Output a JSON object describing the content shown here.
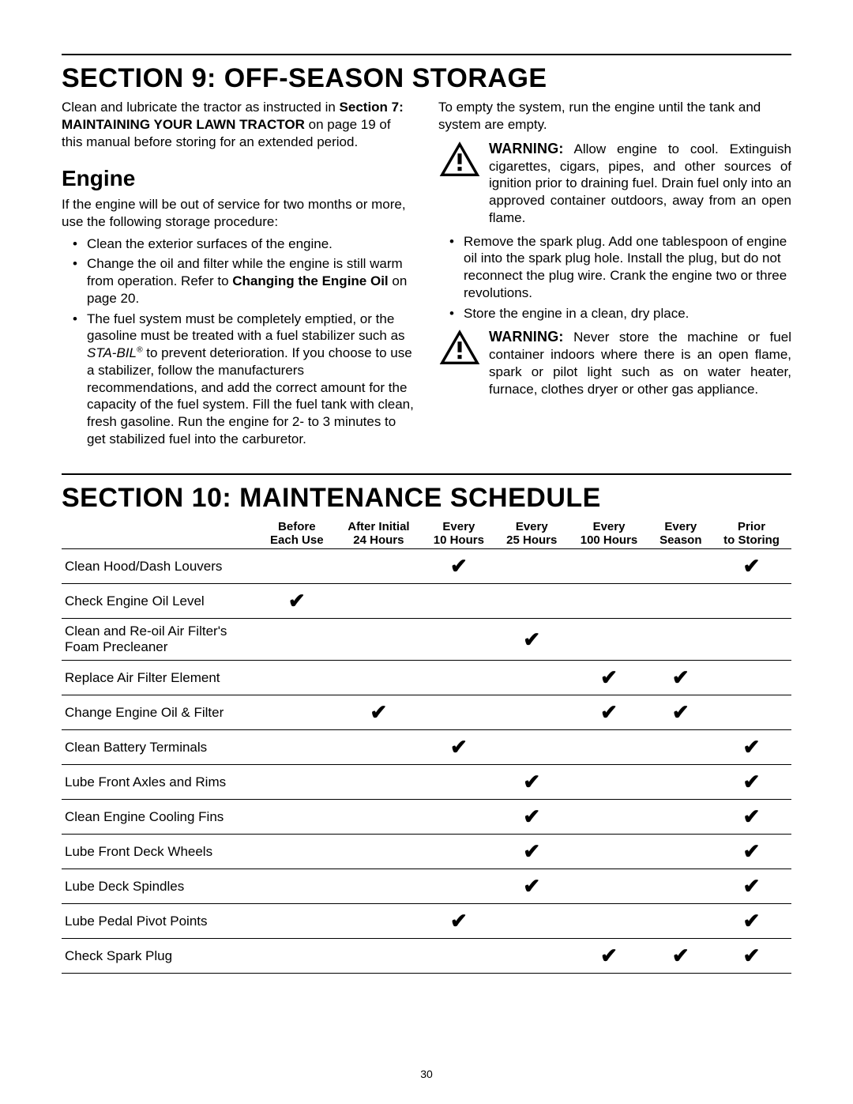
{
  "section9": {
    "title": "SECTION 9:  OFF-SEASON STORAGE",
    "left": {
      "intro_a": "Clean and lubricate the tractor as instructed in ",
      "intro_b": "Section 7: MAINTAINING YOUR LAWN TRACTOR",
      "intro_c": " on page 19 of this manual before storing for an extended period.",
      "engine_h": "Engine",
      "engine_p": "If the engine will be out of service for two months or more, use the following storage procedure:",
      "b1": "Clean the exterior surfaces of the engine.",
      "b2a": "Change the oil and filter while the engine is still warm from operation. Refer to ",
      "b2b": "Changing the Engine Oil",
      "b2c": " on page 20.",
      "b3a": "The fuel system must be completely emptied, or the gasoline must be treated with a fuel stabilizer such as ",
      "b3b": "STA-BIL",
      "b3c": " to prevent deterioration. If you choose to use a stabilizer, follow the manufacturers recommendations, and add the correct amount for the capacity of the fuel system. Fill the fuel tank with clean, fresh gasoline. Run the engine for 2- to 3 minutes to get stabilized fuel into the carburetor."
    },
    "right": {
      "top": "To empty the system, run the engine until the tank and system are empty.",
      "warn1_label": "WARNING:",
      "warn1_text": " Allow engine to cool. Extinguish cigarettes, cigars, pipes, and other sources of ignition prior to draining fuel. Drain fuel only into an approved container outdoors, away from an open flame.",
      "b1": "Remove the spark plug. Add one tablespoon of engine oil into the spark plug hole. Install the plug, but do not reconnect the plug wire. Crank the engine two or three revolutions.",
      "b2": "Store the engine in a clean, dry place.",
      "warn2_label": "WARNING:",
      "warn2_text": " Never store the machine or fuel container indoors where there is an open flame, spark or pilot light such as on water heater, furnace, clothes dryer or other gas appliance."
    }
  },
  "section10": {
    "title": "SECTION 10:  MAINTENANCE SCHEDULE",
    "columns": [
      "",
      "Before\nEach Use",
      "After Initial\n24 Hours",
      "Every\n10 Hours",
      "Every\n25 Hours",
      "Every\n100 Hours",
      "Every\nSeason",
      "Prior\nto Storing"
    ],
    "check_glyph": "✔",
    "rows": [
      {
        "label": "Clean Hood/Dash Louvers",
        "marks": [
          0,
          0,
          1,
          0,
          0,
          0,
          1
        ]
      },
      {
        "label": "Check Engine Oil Level",
        "marks": [
          1,
          0,
          0,
          0,
          0,
          0,
          0
        ]
      },
      {
        "label": "Clean and Re-oil Air Filter's Foam Precleaner",
        "marks": [
          0,
          0,
          0,
          1,
          0,
          0,
          0
        ]
      },
      {
        "label": "Replace Air Filter Element",
        "marks": [
          0,
          0,
          0,
          0,
          1,
          1,
          0
        ]
      },
      {
        "label": "Change Engine Oil & Filter",
        "marks": [
          0,
          1,
          0,
          0,
          1,
          1,
          0
        ]
      },
      {
        "label": "Clean Battery Terminals",
        "marks": [
          0,
          0,
          1,
          0,
          0,
          0,
          1
        ]
      },
      {
        "label": "Lube Front Axles and Rims",
        "marks": [
          0,
          0,
          0,
          1,
          0,
          0,
          1
        ]
      },
      {
        "label": "Clean Engine Cooling Fins",
        "marks": [
          0,
          0,
          0,
          1,
          0,
          0,
          1
        ]
      },
      {
        "label": "Lube Front Deck Wheels",
        "marks": [
          0,
          0,
          0,
          1,
          0,
          0,
          1
        ]
      },
      {
        "label": "Lube Deck Spindles",
        "marks": [
          0,
          0,
          0,
          1,
          0,
          0,
          1
        ]
      },
      {
        "label": "Lube Pedal Pivot Points",
        "marks": [
          0,
          0,
          1,
          0,
          0,
          0,
          1
        ]
      },
      {
        "label": "Check Spark Plug",
        "marks": [
          0,
          0,
          0,
          0,
          1,
          1,
          1
        ]
      }
    ]
  },
  "page_number": "30",
  "colors": {
    "text": "#000000",
    "background": "#ffffff",
    "rule": "#000000"
  }
}
